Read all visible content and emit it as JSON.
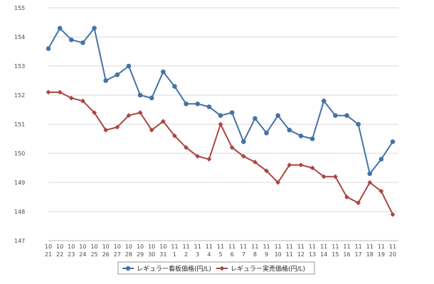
{
  "chart_data": {
    "type": "line",
    "categories": [
      [
        "10",
        "21"
      ],
      [
        "10",
        "22"
      ],
      [
        "10",
        "23"
      ],
      [
        "10",
        "24"
      ],
      [
        "10",
        "25"
      ],
      [
        "10",
        "26"
      ],
      [
        "10",
        "27"
      ],
      [
        "10",
        "28"
      ],
      [
        "10",
        "29"
      ],
      [
        "10",
        "30"
      ],
      [
        "10",
        "31"
      ],
      [
        "11",
        "1"
      ],
      [
        "11",
        "2"
      ],
      [
        "11",
        "3"
      ],
      [
        "11",
        "4"
      ],
      [
        "11",
        "5"
      ],
      [
        "11",
        "6"
      ],
      [
        "11",
        "7"
      ],
      [
        "11",
        "8"
      ],
      [
        "11",
        "9"
      ],
      [
        "11",
        "10"
      ],
      [
        "11",
        "11"
      ],
      [
        "11",
        "12"
      ],
      [
        "11",
        "13"
      ],
      [
        "11",
        "14"
      ],
      [
        "11",
        "15"
      ],
      [
        "11",
        "16"
      ],
      [
        "11",
        "17"
      ],
      [
        "11",
        "18"
      ],
      [
        "11",
        "19"
      ],
      [
        "11",
        "20"
      ]
    ],
    "ylim": [
      147,
      155
    ],
    "yticks": [
      147,
      148,
      149,
      150,
      151,
      152,
      153,
      154,
      155
    ],
    "grid": true,
    "legend_position": "bottom",
    "series": [
      {
        "name": "レギュラー看板価格(円/L)",
        "color": "#4572a7",
        "marker": "circle",
        "values": [
          153.6,
          154.3,
          153.9,
          153.8,
          154.3,
          152.5,
          152.7,
          153.0,
          152.0,
          151.9,
          152.8,
          152.3,
          151.7,
          151.7,
          151.6,
          151.3,
          151.4,
          150.4,
          151.2,
          150.7,
          151.3,
          150.8,
          150.6,
          150.5,
          151.8,
          151.3,
          151.3,
          151.0,
          149.3,
          149.8,
          150.4
        ]
      },
      {
        "name": "レギュラー実売価格(円/L)",
        "color": "#aa4643",
        "marker": "diamond",
        "values": [
          152.1,
          152.1,
          151.9,
          151.8,
          151.4,
          150.8,
          150.9,
          151.3,
          151.4,
          150.8,
          151.1,
          150.6,
          150.2,
          149.9,
          149.8,
          151.0,
          150.2,
          149.9,
          149.7,
          149.4,
          149.0,
          149.6,
          149.6,
          149.5,
          149.2,
          149.2,
          148.5,
          148.3,
          149.0,
          148.7,
          147.9
        ]
      }
    ]
  }
}
